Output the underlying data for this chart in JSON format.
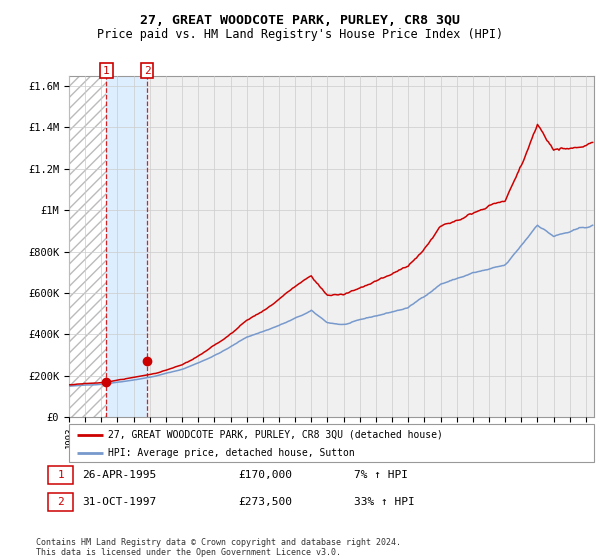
{
  "title": "27, GREAT WOODCOTE PARK, PURLEY, CR8 3QU",
  "subtitle": "Price paid vs. HM Land Registry's House Price Index (HPI)",
  "legend_line1": "27, GREAT WOODCOTE PARK, PURLEY, CR8 3QU (detached house)",
  "legend_line2": "HPI: Average price, detached house, Sutton",
  "footer": "Contains HM Land Registry data © Crown copyright and database right 2024.\nThis data is licensed under the Open Government Licence v3.0.",
  "sale1_date": 1995.32,
  "sale1_price": 170000,
  "sale2_date": 1997.83,
  "sale2_price": 273500,
  "table1": [
    "1",
    "26-APR-1995",
    "£170,000",
    "7% ↑ HPI"
  ],
  "table2": [
    "2",
    "31-OCT-1997",
    "£273,500",
    "33% ↑ HPI"
  ],
  "hpi_color": "#7799cc",
  "price_color": "#cc0000",
  "shaded_region_color": "#ddeeff",
  "grid_color": "#cccccc",
  "bg_color": "#f0f0f0",
  "ylim": [
    0,
    1650000
  ],
  "yticks": [
    0,
    200000,
    400000,
    600000,
    800000,
    1000000,
    1200000,
    1400000,
    1600000
  ],
  "ytick_labels": [
    "£0",
    "£200K",
    "£400K",
    "£600K",
    "£800K",
    "£1M",
    "£1.2M",
    "£1.4M",
    "£1.6M"
  ],
  "xmin": 1993.0,
  "xmax": 2025.5,
  "xticks": [
    1993,
    1994,
    1995,
    1996,
    1997,
    1998,
    1999,
    2000,
    2001,
    2002,
    2003,
    2004,
    2005,
    2006,
    2007,
    2008,
    2009,
    2010,
    2011,
    2012,
    2013,
    2014,
    2015,
    2016,
    2017,
    2018,
    2019,
    2020,
    2021,
    2022,
    2023,
    2024,
    2025
  ]
}
